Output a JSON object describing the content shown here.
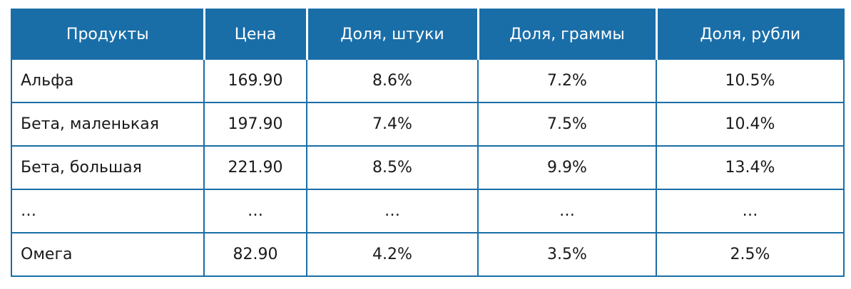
{
  "table": {
    "headers": [
      "Продукты",
      "Цена",
      "Доля, штуки",
      "Доля, граммы",
      "Доля, рубли"
    ],
    "rows": [
      [
        "Альфа",
        "169.90",
        "8.6%",
        "7.2%",
        "10.5%"
      ],
      [
        "Бета, маленькая",
        "197.90",
        "7.4%",
        "7.5%",
        "10.4%"
      ],
      [
        "Бета, большая",
        "221.90",
        "8.5%",
        "9.9%",
        "13.4%"
      ],
      [
        "…",
        "…",
        "…",
        "…",
        "…"
      ],
      [
        "Омега",
        "82.90",
        "4.2%",
        "3.5%",
        "2.5%"
      ]
    ]
  },
  "colors": {
    "header_bg": "#1a6ea8",
    "border": "#1a6ea8",
    "header_text": "#ffffff"
  }
}
